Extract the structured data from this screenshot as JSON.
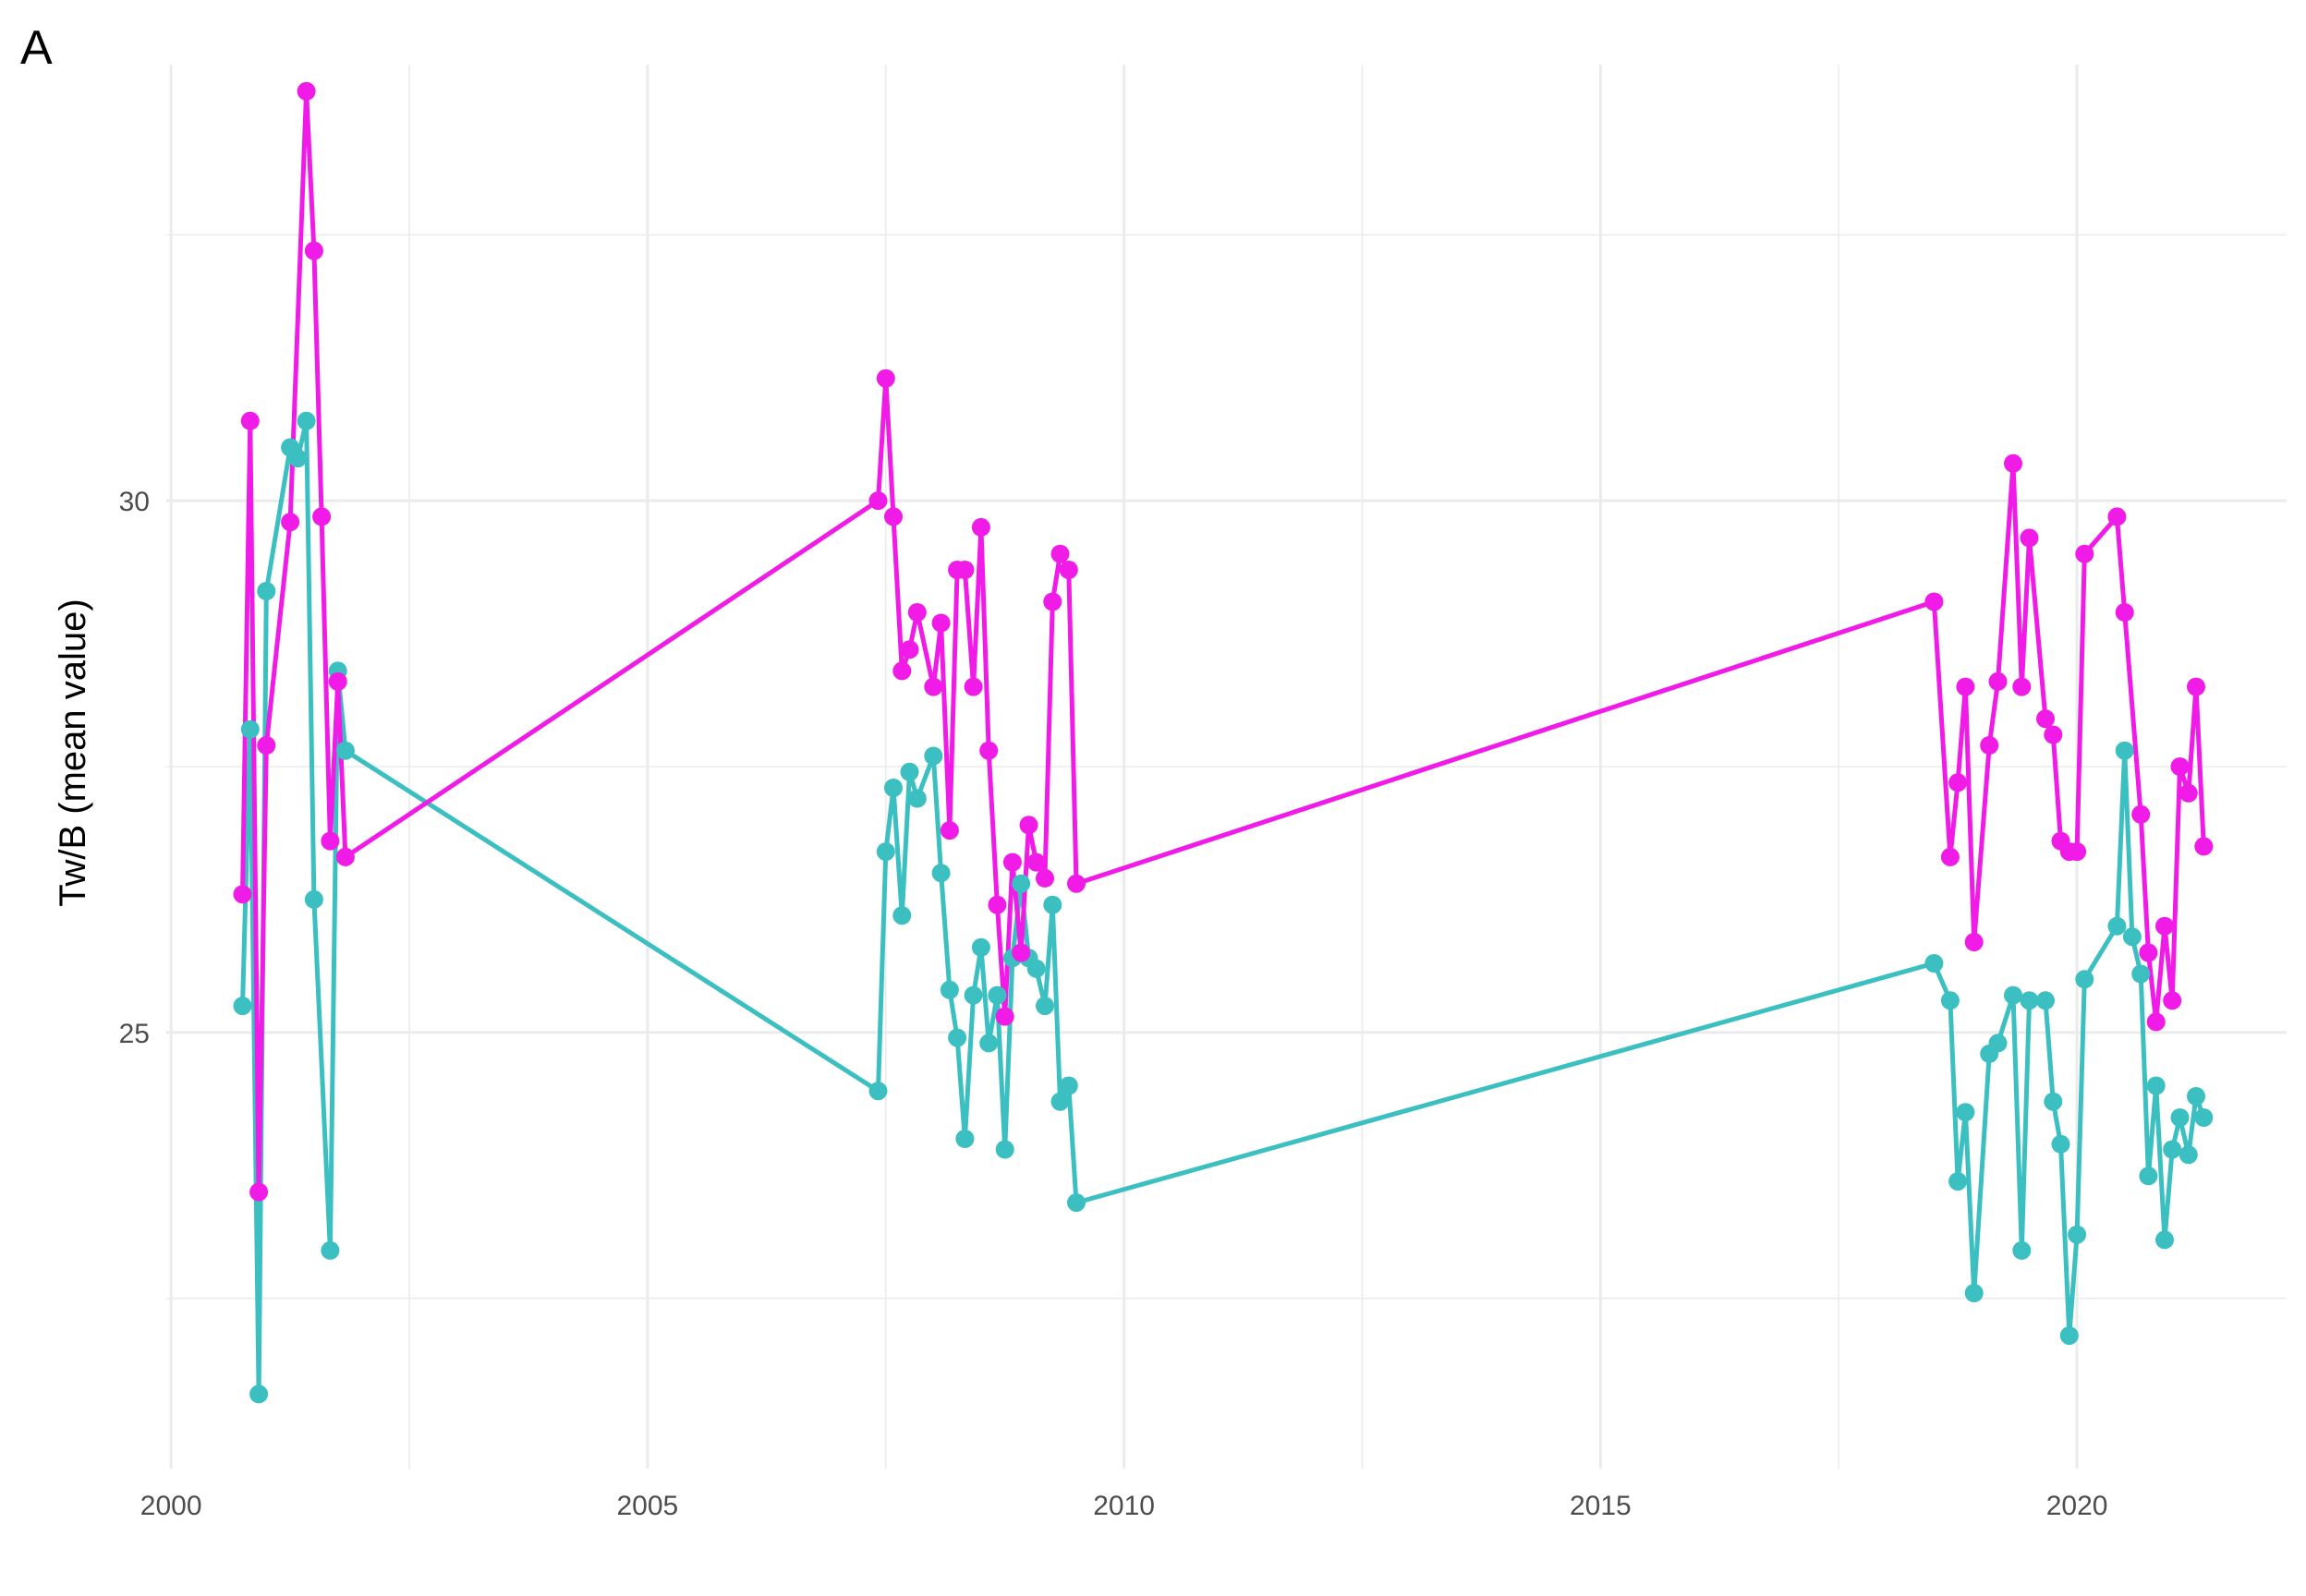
{
  "panel_label": "A",
  "chart_data": {
    "type": "line",
    "title": "",
    "xlabel": "",
    "ylabel": "Tw/B (mean value)",
    "xlim": [
      1999.95,
      2022.2
    ],
    "ylim": [
      20.9,
      34.1
    ],
    "x_ticks": [
      2000,
      2005,
      2010,
      2015,
      2020
    ],
    "x_tick_labels": [
      "2000",
      "2005",
      "2010",
      "2015",
      "2020"
    ],
    "y_ticks": [
      25,
      30
    ],
    "y_tick_labels": [
      "25",
      "30"
    ],
    "grid": true,
    "legend": "none",
    "colors": {
      "magenta": "#f11be8",
      "teal": "#3cbfc1",
      "grid": "#ebebeb"
    },
    "series": [
      {
        "color": "#f11be8",
        "points": [
          [
            2000.75,
            26.3
          ],
          [
            2000.83,
            30.75
          ],
          [
            2000.92,
            23.5
          ],
          [
            2001.0,
            27.7
          ],
          [
            2001.25,
            29.8
          ],
          [
            2001.42,
            33.85
          ],
          [
            2001.5,
            32.35
          ],
          [
            2001.58,
            29.85
          ],
          [
            2001.67,
            26.8
          ],
          [
            2001.75,
            28.3
          ],
          [
            2001.83,
            26.65
          ],
          [
            2007.42,
            30.0
          ],
          [
            2007.5,
            31.15
          ],
          [
            2007.58,
            29.85
          ],
          [
            2007.67,
            28.4
          ],
          [
            2007.75,
            28.6
          ],
          [
            2007.83,
            28.95
          ],
          [
            2008.0,
            28.25
          ],
          [
            2008.08,
            28.85
          ],
          [
            2008.17,
            26.9
          ],
          [
            2008.25,
            29.35
          ],
          [
            2008.33,
            29.35
          ],
          [
            2008.42,
            28.25
          ],
          [
            2008.5,
            29.75
          ],
          [
            2008.58,
            27.65
          ],
          [
            2008.67,
            26.2
          ],
          [
            2008.75,
            25.15
          ],
          [
            2008.83,
            26.6
          ],
          [
            2008.92,
            25.75
          ],
          [
            2009.0,
            26.95
          ],
          [
            2009.08,
            26.6
          ],
          [
            2009.17,
            26.45
          ],
          [
            2009.25,
            29.05
          ],
          [
            2009.33,
            29.5
          ],
          [
            2009.42,
            29.35
          ],
          [
            2009.5,
            26.4
          ],
          [
            2018.5,
            29.05
          ],
          [
            2018.67,
            26.65
          ],
          [
            2018.75,
            27.35
          ],
          [
            2018.83,
            28.25
          ],
          [
            2018.92,
            25.85
          ],
          [
            2019.08,
            27.7
          ],
          [
            2019.17,
            28.3
          ],
          [
            2019.33,
            30.35
          ],
          [
            2019.42,
            28.25
          ],
          [
            2019.5,
            29.65
          ],
          [
            2019.67,
            27.95
          ],
          [
            2019.75,
            27.8
          ],
          [
            2019.83,
            26.8
          ],
          [
            2019.92,
            26.7
          ],
          [
            2020.0,
            26.7
          ],
          [
            2020.08,
            29.5
          ],
          [
            2020.42,
            29.85
          ],
          [
            2020.5,
            28.95
          ],
          [
            2020.67,
            27.05
          ],
          [
            2020.75,
            25.75
          ],
          [
            2020.83,
            25.1
          ],
          [
            2020.92,
            26.0
          ],
          [
            2021.0,
            25.3
          ],
          [
            2021.08,
            27.5
          ],
          [
            2021.17,
            27.25
          ],
          [
            2021.25,
            28.25
          ],
          [
            2021.33,
            26.75
          ]
        ]
      },
      {
        "color": "#3cbfc1",
        "points": [
          [
            2000.75,
            25.25
          ],
          [
            2000.83,
            27.85
          ],
          [
            2000.92,
            21.6
          ],
          [
            2001.0,
            29.15
          ],
          [
            2001.25,
            30.5
          ],
          [
            2001.33,
            30.4
          ],
          [
            2001.42,
            30.75
          ],
          [
            2001.5,
            26.25
          ],
          [
            2001.67,
            22.95
          ],
          [
            2001.75,
            28.4
          ],
          [
            2001.83,
            27.65
          ],
          [
            2007.42,
            24.45
          ],
          [
            2007.5,
            26.7
          ],
          [
            2007.58,
            27.3
          ],
          [
            2007.67,
            26.1
          ],
          [
            2007.75,
            27.45
          ],
          [
            2007.83,
            27.2
          ],
          [
            2008.0,
            27.6
          ],
          [
            2008.08,
            26.5
          ],
          [
            2008.17,
            25.4
          ],
          [
            2008.25,
            24.95
          ],
          [
            2008.33,
            24.0
          ],
          [
            2008.42,
            25.35
          ],
          [
            2008.5,
            25.8
          ],
          [
            2008.58,
            24.9
          ],
          [
            2008.67,
            25.35
          ],
          [
            2008.75,
            23.9
          ],
          [
            2008.83,
            25.7
          ],
          [
            2008.92,
            26.4
          ],
          [
            2009.0,
            25.7
          ],
          [
            2009.08,
            25.6
          ],
          [
            2009.17,
            25.25
          ],
          [
            2009.25,
            26.2
          ],
          [
            2009.33,
            24.35
          ],
          [
            2009.42,
            24.5
          ],
          [
            2009.5,
            23.4
          ],
          [
            2018.5,
            25.65
          ],
          [
            2018.67,
            25.3
          ],
          [
            2018.75,
            23.6
          ],
          [
            2018.83,
            24.25
          ],
          [
            2018.92,
            22.55
          ],
          [
            2019.08,
            24.8
          ],
          [
            2019.17,
            24.9
          ],
          [
            2019.33,
            25.35
          ],
          [
            2019.42,
            22.95
          ],
          [
            2019.5,
            25.3
          ],
          [
            2019.67,
            25.3
          ],
          [
            2019.75,
            24.35
          ],
          [
            2019.83,
            23.95
          ],
          [
            2019.92,
            22.15
          ],
          [
            2020.0,
            23.1
          ],
          [
            2020.08,
            25.5
          ],
          [
            2020.42,
            26.0
          ],
          [
            2020.5,
            27.65
          ],
          [
            2020.58,
            25.9
          ],
          [
            2020.67,
            25.55
          ],
          [
            2020.75,
            23.65
          ],
          [
            2020.83,
            24.5
          ],
          [
            2020.92,
            23.05
          ],
          [
            2021.0,
            23.9
          ],
          [
            2021.08,
            24.2
          ],
          [
            2021.17,
            23.85
          ],
          [
            2021.25,
            24.4
          ],
          [
            2021.33,
            24.2
          ]
        ]
      }
    ]
  }
}
